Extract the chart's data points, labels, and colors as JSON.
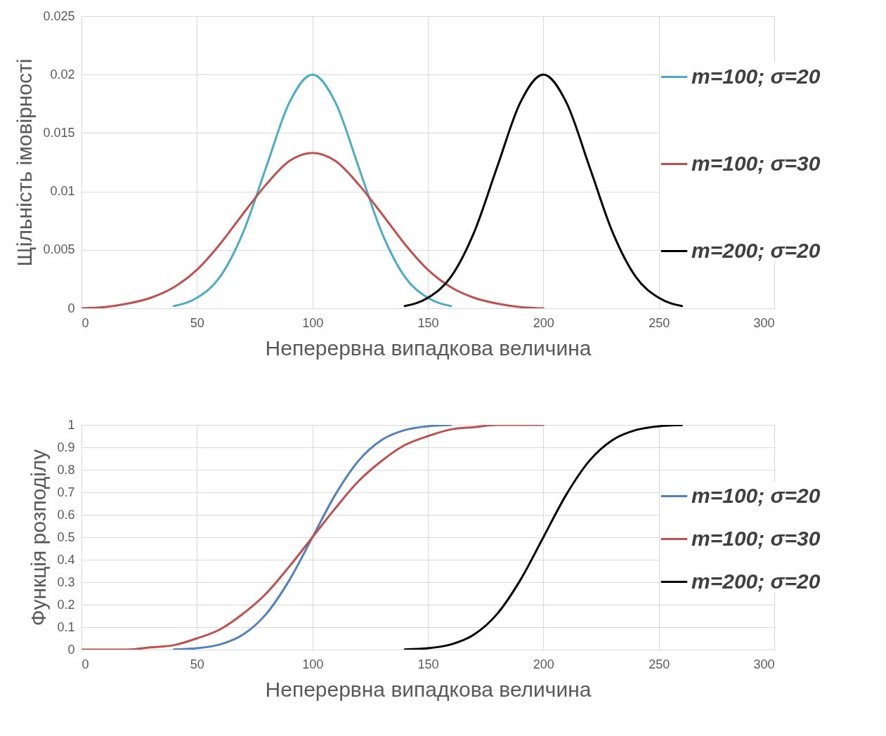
{
  "chart_data": [
    {
      "type": "line",
      "xlabel": "Неперервна випадкова величина",
      "ylabel": "Щільність імовірності",
      "xlim": [
        0,
        300
      ],
      "xticks": [
        0,
        50,
        100,
        150,
        200,
        250,
        300
      ],
      "ylim": [
        0,
        0.025
      ],
      "yticks": [
        0,
        0.005,
        0.01,
        0.015,
        0.02,
        0.025
      ],
      "grid": true,
      "legend": "right",
      "series": [
        {
          "name": "m=100; σ=20",
          "color": "#4bacc6",
          "x": [
            40,
            50,
            60,
            70,
            80,
            90,
            100,
            110,
            120,
            130,
            140,
            150,
            160
          ],
          "values": [
            0.0002,
            0.0009,
            0.0027,
            0.0065,
            0.0121,
            0.0176,
            0.02,
            0.0176,
            0.0121,
            0.0065,
            0.0027,
            0.0009,
            0.0002
          ]
        },
        {
          "name": "m=100; σ=30",
          "color": "#c0504d",
          "x": [
            0,
            10,
            20,
            30,
            40,
            50,
            60,
            70,
            80,
            90,
            100,
            110,
            120,
            130,
            140,
            150,
            160,
            170,
            180,
            190,
            200
          ],
          "values": [
            0,
            0.0001,
            0.0004,
            0.0009,
            0.0018,
            0.0033,
            0.0055,
            0.0081,
            0.0106,
            0.0126,
            0.0133,
            0.0126,
            0.0106,
            0.0081,
            0.0055,
            0.0033,
            0.0018,
            0.0009,
            0.0004,
            0.0001,
            0
          ]
        },
        {
          "name": "m=200; σ=20",
          "color": "#000000",
          "x": [
            140,
            150,
            160,
            170,
            180,
            190,
            200,
            210,
            220,
            230,
            240,
            250,
            260
          ],
          "values": [
            0.0002,
            0.0009,
            0.0027,
            0.0065,
            0.0121,
            0.0176,
            0.02,
            0.0176,
            0.0121,
            0.0065,
            0.0027,
            0.0009,
            0.0002
          ]
        }
      ]
    },
    {
      "type": "line",
      "xlabel": "Неперервна випадкова величина",
      "ylabel": "Функція розподілу",
      "xlim": [
        0,
        300
      ],
      "xticks": [
        0,
        50,
        100,
        150,
        200,
        250,
        300
      ],
      "ylim": [
        0,
        1
      ],
      "yticks": [
        0,
        0.1,
        0.2,
        0.3,
        0.4,
        0.5,
        0.6,
        0.7,
        0.8,
        0.9,
        1
      ],
      "grid": true,
      "legend": "right",
      "series": [
        {
          "name": "m=100; σ=20",
          "color": "#4f81bd",
          "x": [
            40,
            50,
            60,
            70,
            80,
            90,
            100,
            110,
            120,
            130,
            140,
            150,
            160
          ],
          "values": [
            0.001,
            0.006,
            0.023,
            0.067,
            0.159,
            0.309,
            0.5,
            0.691,
            0.841,
            0.933,
            0.977,
            0.994,
            0.999
          ]
        },
        {
          "name": "m=100; σ=30",
          "color": "#c0504d",
          "x": [
            0,
            10,
            20,
            30,
            40,
            50,
            60,
            70,
            80,
            90,
            100,
            110,
            120,
            130,
            140,
            150,
            160,
            170,
            180,
            190,
            200
          ],
          "values": [
            0,
            0,
            0,
            0.01,
            0.02,
            0.05,
            0.09,
            0.16,
            0.25,
            0.37,
            0.5,
            0.63,
            0.75,
            0.84,
            0.91,
            0.95,
            0.98,
            0.99,
            1,
            1,
            1
          ]
        },
        {
          "name": "m=200; σ=20",
          "color": "#000000",
          "x": [
            140,
            150,
            160,
            170,
            180,
            190,
            200,
            210,
            220,
            230,
            240,
            250,
            260
          ],
          "values": [
            0.001,
            0.006,
            0.023,
            0.067,
            0.159,
            0.309,
            0.5,
            0.691,
            0.841,
            0.933,
            0.977,
            0.994,
            0.999
          ]
        }
      ]
    }
  ]
}
